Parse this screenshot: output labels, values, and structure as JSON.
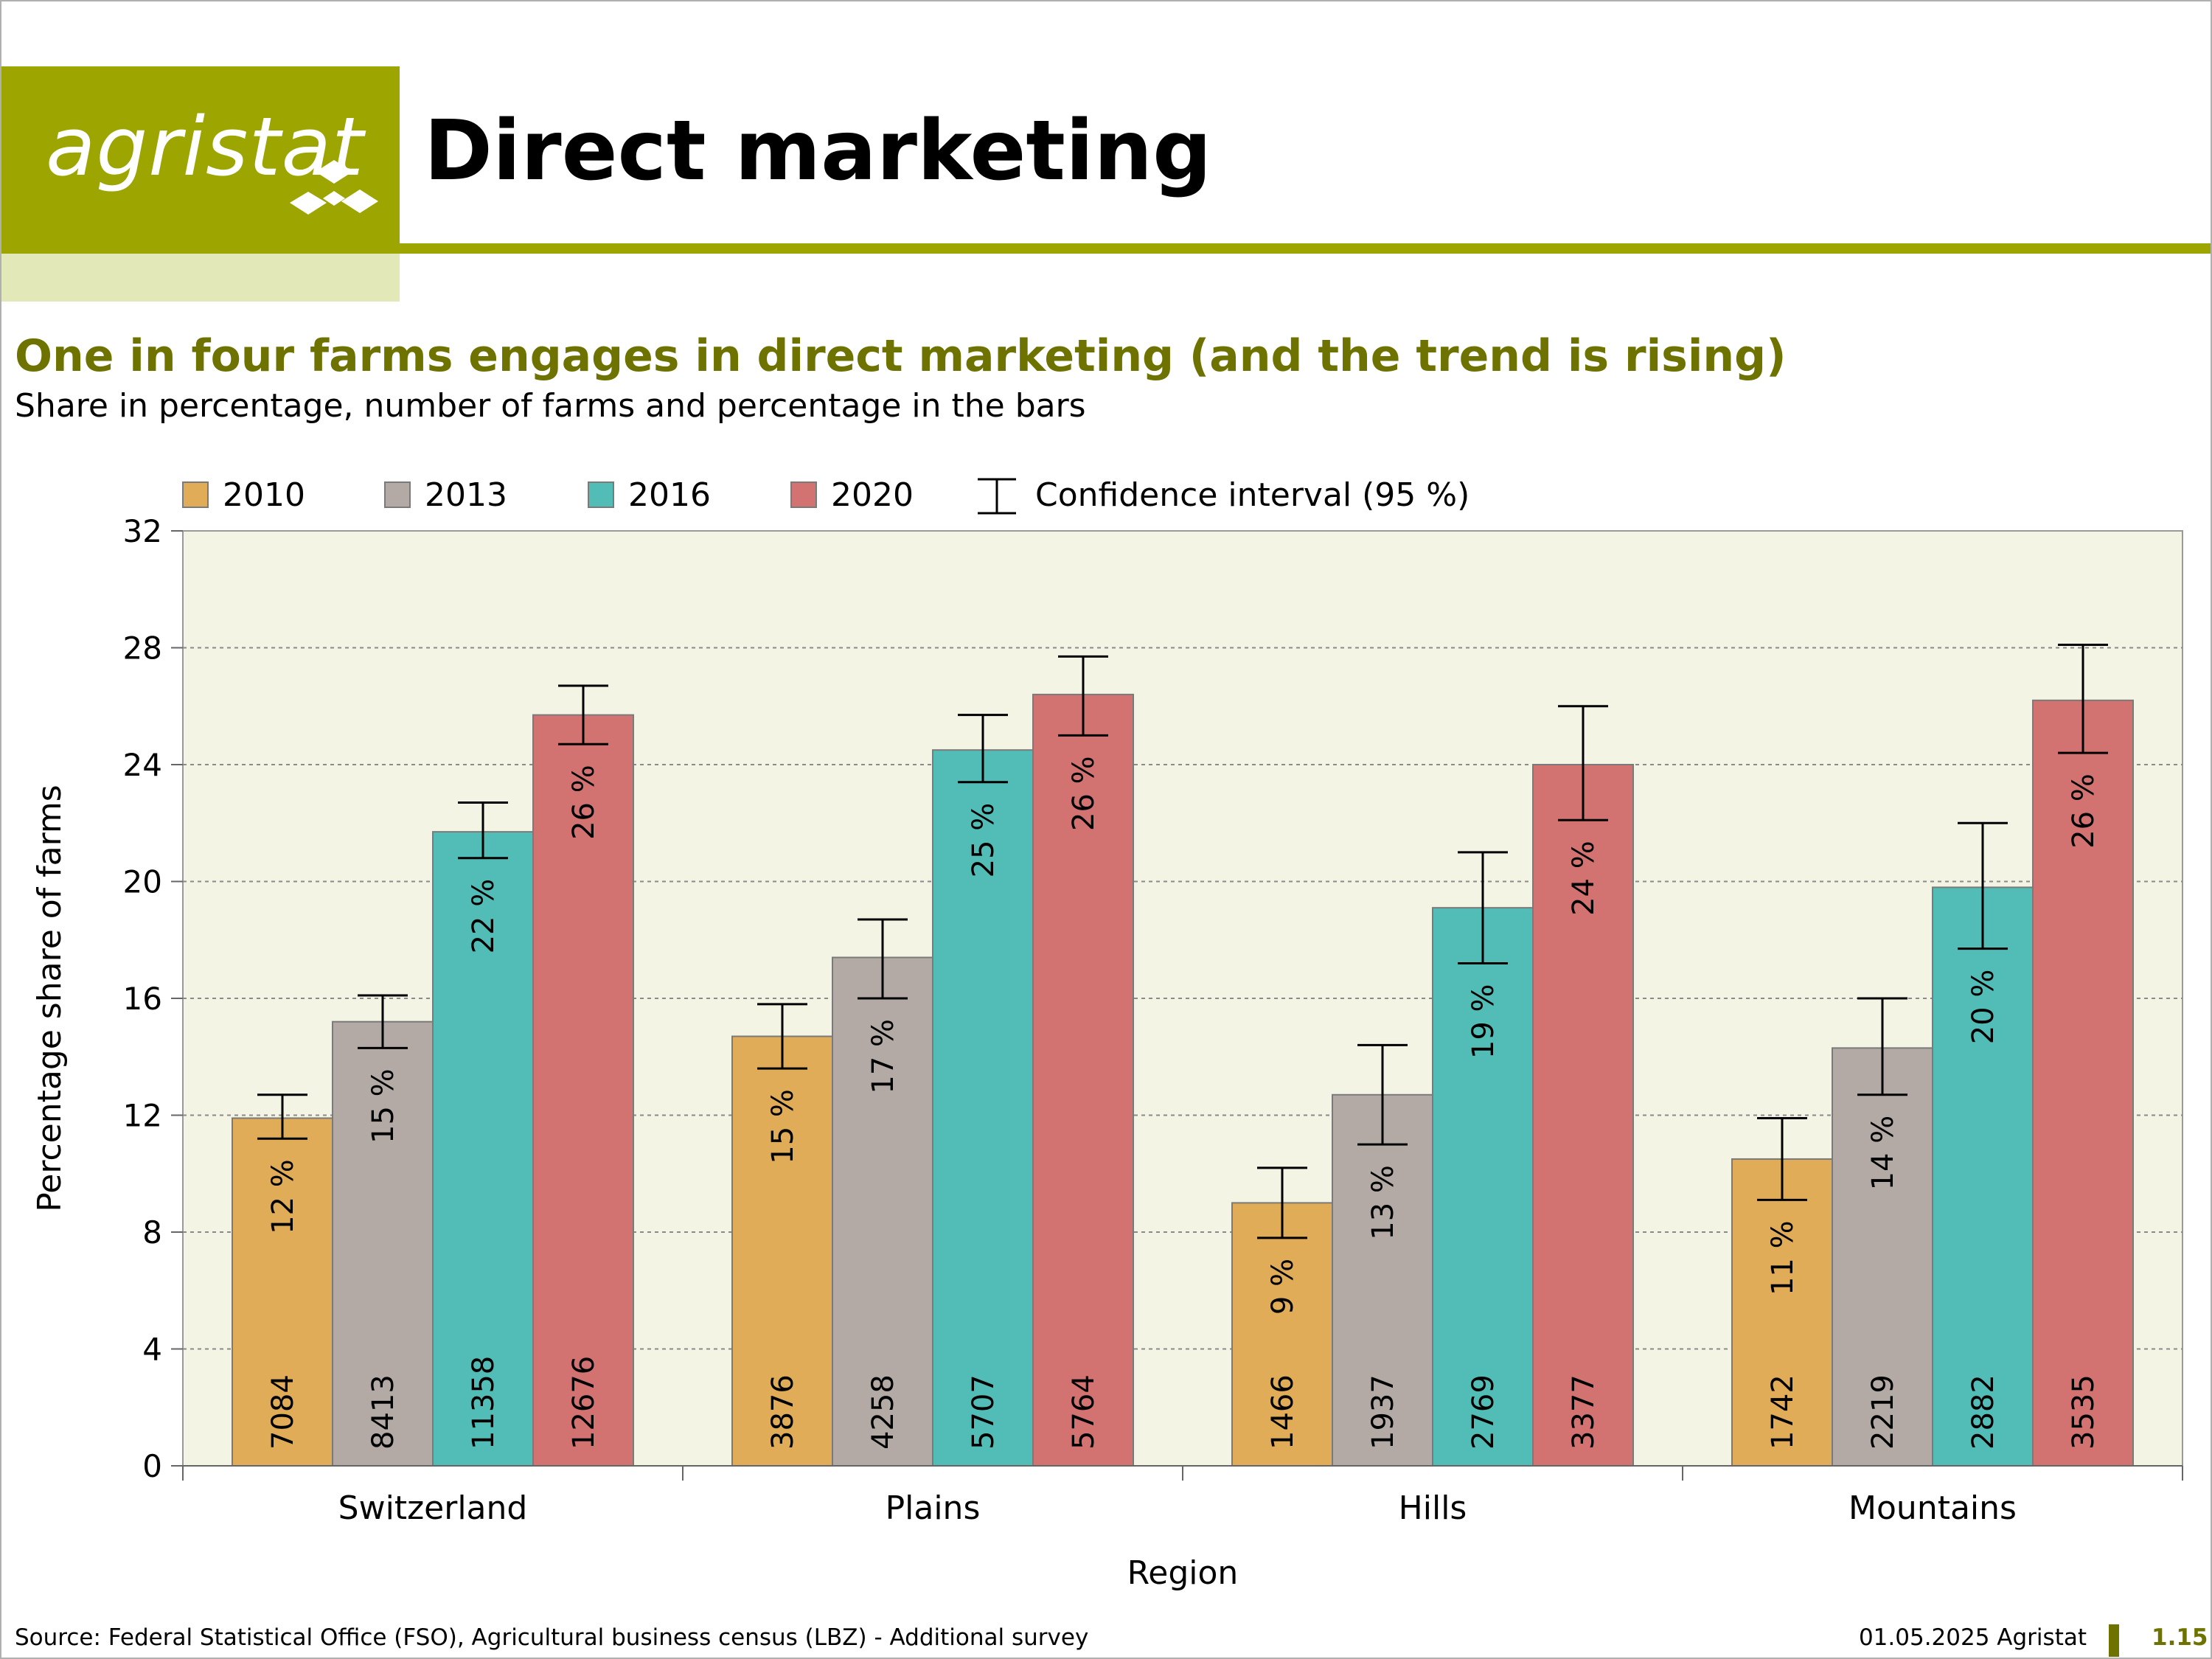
{
  "header": {
    "logo_text": "agristat",
    "page_title": "Direct marketing"
  },
  "headline": "One in four farms engages in direct marketing (and the trend is rising)",
  "subtitle": "Share in percentage, number of farms and percentage in the bars",
  "footer": {
    "source": "Source: Federal Statistical Office (FSO), Agricultural business census (LBZ) - Additional survey",
    "date": "01.05.2025 Agristat",
    "page": "1.15"
  },
  "colors": {
    "brand": "#9da600",
    "brand_dark": "#6e7300",
    "plot_bg": "#f3f4e4",
    "s2010": "#e0ac57",
    "s2013": "#b3aaa5",
    "s2016": "#52bdb6",
    "s2020": "#d27271"
  },
  "chart_data": {
    "type": "bar",
    "categories": [
      "Switzerland",
      "Plains",
      "Hills",
      "Mountains"
    ],
    "xlabel": "Region",
    "ylabel": "Percentage share of farms",
    "ylim": [
      0,
      32
    ],
    "yticks": [
      0,
      4,
      8,
      12,
      16,
      20,
      24,
      28,
      32
    ],
    "grid": true,
    "legend_position": "top",
    "legend_ci_label": "Confidence interval (95 %)",
    "series": [
      {
        "name": "2010",
        "values": [
          11.9,
          14.7,
          9.0,
          10.5
        ],
        "ci_low": [
          11.2,
          13.6,
          7.8,
          9.1
        ],
        "ci_high": [
          12.7,
          15.8,
          10.2,
          11.9
        ],
        "pct_labels": [
          "12 %",
          "15 %",
          "9 %",
          "11 %"
        ],
        "counts": [
          "7084",
          "3876",
          "1466",
          "1742"
        ]
      },
      {
        "name": "2013",
        "values": [
          15.2,
          17.4,
          12.7,
          14.3
        ],
        "ci_low": [
          14.3,
          16.0,
          11.0,
          12.7
        ],
        "ci_high": [
          16.1,
          18.7,
          14.4,
          16.0
        ],
        "pct_labels": [
          "15 %",
          "17 %",
          "13 %",
          "14 %"
        ],
        "counts": [
          "8413",
          "4258",
          "1937",
          "2219"
        ]
      },
      {
        "name": "2016",
        "values": [
          21.7,
          24.5,
          19.1,
          19.8
        ],
        "ci_low": [
          20.8,
          23.4,
          17.2,
          17.7
        ],
        "ci_high": [
          22.7,
          25.7,
          21.0,
          22.0
        ],
        "pct_labels": [
          "22 %",
          "25 %",
          "19 %",
          "20 %"
        ],
        "counts": [
          "11358",
          "5707",
          "2769",
          "2882"
        ]
      },
      {
        "name": "2020",
        "values": [
          25.7,
          26.4,
          24.0,
          26.2
        ],
        "ci_low": [
          24.7,
          25.0,
          22.1,
          24.4
        ],
        "ci_high": [
          26.7,
          27.7,
          26.0,
          28.1
        ],
        "pct_labels": [
          "26 %",
          "26 %",
          "24 %",
          "26 %"
        ],
        "counts": [
          "12676",
          "5764",
          "3377",
          "3535"
        ]
      }
    ]
  }
}
